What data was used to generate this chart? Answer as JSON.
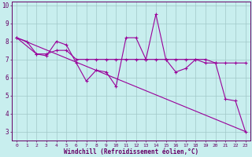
{
  "title": "",
  "xlabel": "Windchill (Refroidissement éolien,°C)",
  "bg_color": "#c8eeee",
  "grid_color": "#a0c8c8",
  "line_color": "#990099",
  "spine_color": "#660066",
  "tick_color": "#660066",
  "xlim": [
    -0.5,
    23.5
  ],
  "ylim": [
    2.5,
    10.2
  ],
  "xticks": [
    0,
    1,
    2,
    3,
    4,
    5,
    6,
    7,
    8,
    9,
    10,
    11,
    12,
    13,
    14,
    15,
    16,
    17,
    18,
    19,
    20,
    21,
    22,
    23
  ],
  "yticks": [
    3,
    4,
    5,
    6,
    7,
    8,
    9,
    10
  ],
  "line1_x": [
    0,
    1,
    2,
    3,
    4,
    5,
    6,
    7,
    8,
    9,
    10,
    11,
    12,
    13,
    14,
    15,
    16,
    17,
    18,
    19,
    20,
    21,
    22,
    23
  ],
  "line1_y": [
    8.2,
    8.0,
    7.3,
    7.2,
    8.0,
    7.8,
    6.8,
    5.8,
    6.4,
    6.3,
    5.5,
    8.2,
    8.2,
    7.0,
    9.5,
    7.0,
    6.3,
    6.5,
    7.0,
    7.0,
    6.8,
    4.8,
    4.7,
    3.0
  ],
  "line2_x": [
    0,
    23
  ],
  "line2_y": [
    8.2,
    3.0
  ],
  "line3_x": [
    0,
    2,
    3,
    4,
    5,
    6,
    7,
    8,
    9,
    10,
    11,
    12,
    13,
    14,
    15,
    16,
    17,
    18,
    19,
    20,
    21,
    22,
    23
  ],
  "line3_y": [
    8.2,
    7.3,
    7.3,
    7.5,
    7.5,
    7.0,
    7.0,
    7.0,
    7.0,
    7.0,
    7.0,
    7.0,
    7.0,
    7.0,
    7.0,
    7.0,
    7.0,
    7.0,
    6.8,
    6.8,
    6.8,
    6.8,
    6.8
  ],
  "figsize": [
    3.2,
    2.0
  ],
  "dpi": 100
}
